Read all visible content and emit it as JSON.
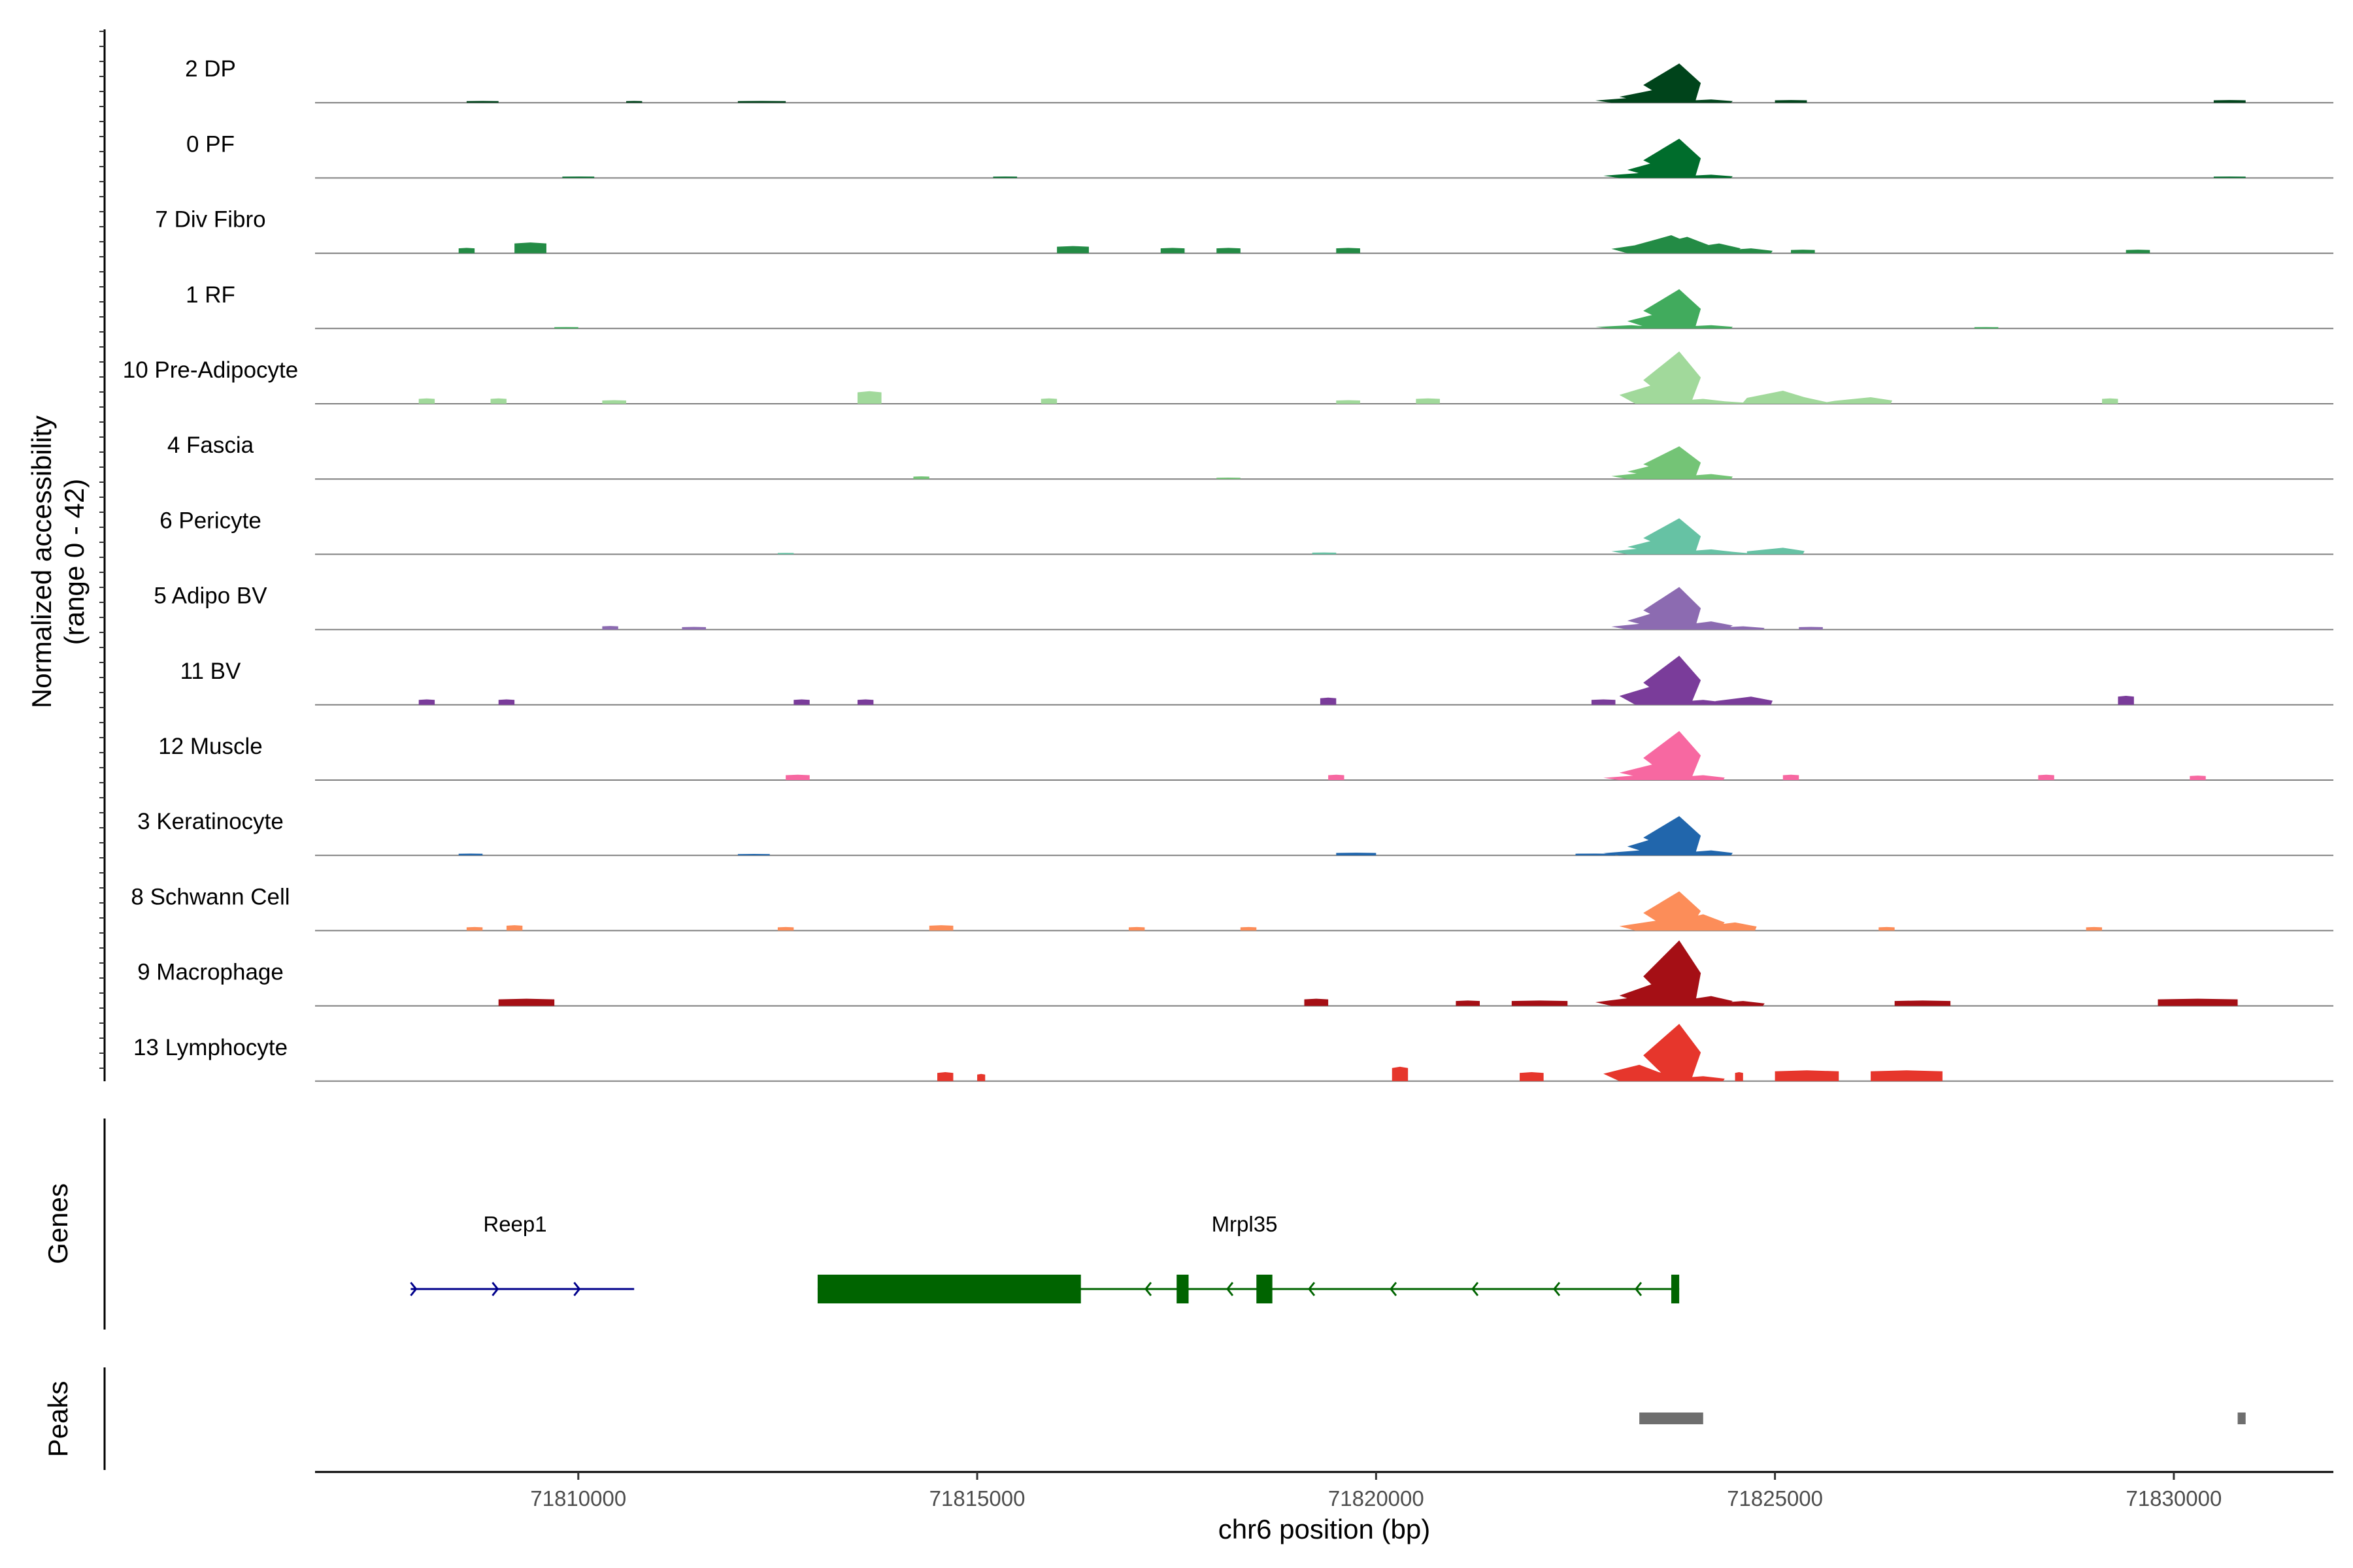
{
  "chart_data": {
    "type": "area",
    "y_axis_title": "Normalized accessibility",
    "y_axis_subtitle": "(range 0 - 42)",
    "ylim": [
      0,
      42
    ],
    "x_axis_title": "chr6 position (bp)",
    "xlim": [
      71806700,
      71832000
    ],
    "x_ticks": [
      {
        "value": 71810000,
        "label": "71810000"
      },
      {
        "value": 71815000,
        "label": "71815000"
      },
      {
        "value": 71820000,
        "label": "71820000"
      },
      {
        "value": 71825000,
        "label": "71825000"
      },
      {
        "value": 71830000,
        "label": "71830000"
      }
    ],
    "tracks": [
      {
        "name": "2 DP",
        "color": "#00441b",
        "signal": [
          [
            71823200,
            3
          ],
          [
            71823500,
            8
          ],
          [
            71823800,
            24
          ],
          [
            71824200,
            2
          ]
        ],
        "minor": [
          [
            71808600,
            71809000,
            1
          ],
          [
            71810600,
            71810800,
            1
          ],
          [
            71812000,
            71812600,
            1
          ],
          [
            71825000,
            71825400,
            1.5
          ],
          [
            71830500,
            71830900,
            1.5
          ]
        ]
      },
      {
        "name": "0 PF",
        "color": "#006d2c",
        "signal": [
          [
            71823300,
            3
          ],
          [
            71823600,
            11
          ],
          [
            71823800,
            24
          ],
          [
            71824200,
            2
          ]
        ],
        "minor": [
          [
            71809800,
            71810200,
            0.8
          ],
          [
            71815200,
            71815500,
            0.8
          ],
          [
            71830500,
            71830900,
            0.8
          ]
        ]
      },
      {
        "name": "7 Div Fibro",
        "color": "#238b45",
        "signal": [
          [
            71823400,
            6
          ],
          [
            71823700,
            11
          ],
          [
            71823900,
            10
          ],
          [
            71824300,
            6
          ],
          [
            71824700,
            3
          ]
        ],
        "minor": [
          [
            71808500,
            71808700,
            3
          ],
          [
            71809200,
            71809600,
            6
          ],
          [
            71816000,
            71816400,
            4
          ],
          [
            71817300,
            71817600,
            3
          ],
          [
            71818000,
            71818300,
            3
          ],
          [
            71819500,
            71819800,
            3
          ],
          [
            71825200,
            71825500,
            2
          ],
          [
            71829400,
            71829700,
            2
          ]
        ]
      },
      {
        "name": "1 RF",
        "color": "#41ab5d",
        "signal": [
          [
            71823200,
            2
          ],
          [
            71823600,
            10
          ],
          [
            71823800,
            24
          ],
          [
            71824200,
            2
          ]
        ],
        "minor": [
          [
            71809700,
            71810000,
            0.8
          ],
          [
            71827500,
            71827800,
            0.8
          ]
        ]
      },
      {
        "name": "10 Pre-Adipocyte",
        "color": "#a1d99b",
        "signal": [
          [
            71823500,
            12
          ],
          [
            71823800,
            32
          ],
          [
            71824100,
            3
          ],
          [
            71825100,
            8
          ],
          [
            71826200,
            4
          ]
        ],
        "minor": [
          [
            71808000,
            71808200,
            3
          ],
          [
            71808900,
            71809100,
            3
          ],
          [
            71810300,
            71810600,
            2
          ],
          [
            71813500,
            71813800,
            7
          ],
          [
            71815800,
            71816000,
            3
          ],
          [
            71819500,
            71819800,
            2
          ],
          [
            71820500,
            71820800,
            3
          ],
          [
            71829100,
            71829300,
            3
          ]
        ]
      },
      {
        "name": "4 Fascia",
        "color": "#74c476",
        "signal": [
          [
            71823400,
            4
          ],
          [
            71823600,
            10
          ],
          [
            71823800,
            20
          ],
          [
            71824200,
            3
          ]
        ],
        "minor": [
          [
            71814200,
            71814400,
            1.5
          ],
          [
            71818000,
            71818300,
            0.8
          ]
        ]
      },
      {
        "name": "6 Pericyte",
        "color": "#66c2a4",
        "signal": [
          [
            71823400,
            4
          ],
          [
            71823600,
            10
          ],
          [
            71823800,
            22
          ],
          [
            71824200,
            3
          ],
          [
            71825100,
            4
          ]
        ],
        "minor": [
          [
            71812500,
            71812700,
            0.8
          ],
          [
            71819200,
            71819500,
            1
          ]
        ]
      },
      {
        "name": "5 Adipo BV",
        "color": "#8c6bb1",
        "signal": [
          [
            71823400,
            4
          ],
          [
            71823600,
            12
          ],
          [
            71823800,
            26
          ],
          [
            71824200,
            5
          ],
          [
            71824600,
            2
          ]
        ],
        "minor": [
          [
            71810300,
            71810500,
            2
          ],
          [
            71811300,
            71811600,
            1.5
          ],
          [
            71825300,
            71825600,
            1.5
          ]
        ]
      },
      {
        "name": "11 BV",
        "color": "#7a3c9a",
        "signal": [
          [
            71823500,
            12
          ],
          [
            71823800,
            30
          ],
          [
            71824100,
            3
          ],
          [
            71824700,
            5
          ]
        ],
        "minor": [
          [
            71808000,
            71808200,
            3
          ],
          [
            71809000,
            71809200,
            3
          ],
          [
            71812700,
            71812900,
            3
          ],
          [
            71813500,
            71813700,
            3
          ],
          [
            71819300,
            71819500,
            4
          ],
          [
            71822700,
            71823000,
            3
          ],
          [
            71829300,
            71829500,
            5
          ]
        ]
      },
      {
        "name": "12 Muscle",
        "color": "#f768a1",
        "signal": [
          [
            71823300,
            3
          ],
          [
            71823500,
            10
          ],
          [
            71823800,
            30
          ],
          [
            71824100,
            3
          ]
        ],
        "minor": [
          [
            71812600,
            71812900,
            3
          ],
          [
            71819400,
            71819600,
            3
          ],
          [
            71825100,
            71825300,
            3
          ],
          [
            71828300,
            71828500,
            3
          ],
          [
            71830200,
            71830400,
            2.5
          ]
        ]
      },
      {
        "name": "3 Keratinocyte",
        "color": "#2166ac",
        "signal": [
          [
            71823300,
            3
          ],
          [
            71823600,
            12
          ],
          [
            71823800,
            24
          ],
          [
            71824200,
            3
          ]
        ],
        "minor": [
          [
            71808500,
            71808800,
            1
          ],
          [
            71812000,
            71812400,
            0.8
          ],
          [
            71819500,
            71820000,
            1.5
          ],
          [
            71822500,
            71823000,
            1
          ]
        ]
      },
      {
        "name": "8 Schwann Cell",
        "color": "#fc8d59",
        "signal": [
          [
            71823500,
            6
          ],
          [
            71823800,
            24
          ],
          [
            71824100,
            10
          ],
          [
            71824500,
            5
          ]
        ],
        "minor": [
          [
            71808600,
            71808800,
            2
          ],
          [
            71809100,
            71809300,
            3
          ],
          [
            71812500,
            71812700,
            2
          ],
          [
            71814400,
            71814700,
            3
          ],
          [
            71816900,
            71817100,
            2
          ],
          [
            71818300,
            71818500,
            2
          ],
          [
            71826300,
            71826500,
            2
          ],
          [
            71828900,
            71829100,
            2
          ]
        ]
      },
      {
        "name": "9 Macrophage",
        "color": "#a50f15",
        "signal": [
          [
            71823200,
            5
          ],
          [
            71823500,
            14
          ],
          [
            71823800,
            40
          ],
          [
            71824200,
            6
          ],
          [
            71824600,
            3
          ]
        ],
        "minor": [
          [
            71809000,
            71809700,
            4
          ],
          [
            71819100,
            71819400,
            4
          ],
          [
            71821000,
            71821300,
            3
          ],
          [
            71821700,
            71822400,
            3
          ],
          [
            71826500,
            71827200,
            3
          ],
          [
            71829800,
            71830800,
            4
          ]
        ]
      },
      {
        "name": "13 Lymphocyte",
        "color": "#e6362c",
        "signal": [
          [
            71823300,
            10
          ],
          [
            71823500,
            6
          ],
          [
            71823800,
            35
          ],
          [
            71824100,
            3
          ]
        ],
        "minor": [
          [
            71814500,
            71814700,
            5
          ],
          [
            71815000,
            71815100,
            4
          ],
          [
            71820200,
            71820400,
            8
          ],
          [
            71821800,
            71822100,
            5
          ],
          [
            71824500,
            71824600,
            5
          ],
          [
            71825000,
            71825800,
            6
          ],
          [
            71826200,
            71827100,
            6
          ]
        ]
      }
    ],
    "genes": [
      {
        "name": "Reep1",
        "strand": "+",
        "color": "#00008b",
        "start": 71807900,
        "end": 71810700,
        "exons": []
      },
      {
        "name": "Mrpl35",
        "strand": "-",
        "color": "#006400",
        "start": 71813000,
        "end": 71823800,
        "exons": [
          [
            71813000,
            71816300
          ],
          [
            71817500,
            71817650
          ],
          [
            71818500,
            71818700
          ],
          [
            71823700,
            71823800
          ]
        ]
      }
    ],
    "genes_panel_label": "Genes",
    "peaks_panel_label": "Peaks",
    "peaks": [
      [
        71823300,
        71824100
      ],
      [
        71830800,
        71830900
      ]
    ],
    "peak_color": "#6e6e6e"
  }
}
